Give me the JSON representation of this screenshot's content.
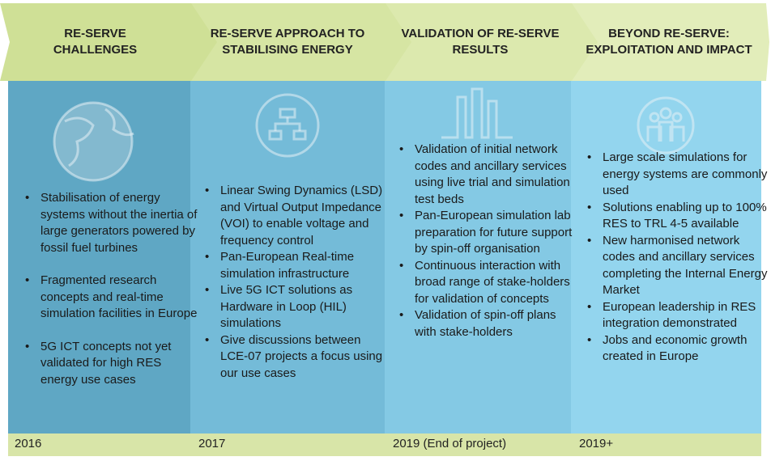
{
  "columns": [
    {
      "heading": "RE-SERVE CHALLENGES",
      "year": "2016",
      "bullets": [
        "Stabilisation of energy systems without the inertia of large generators powered by fossil fuel turbines",
        "Fragmented research concepts and real-time simulation facilities in Europe",
        "5G ICT concepts not yet validated for high RES energy use cases"
      ]
    },
    {
      "heading": "RE-SERVE APPROACH TO STABILISING ENERGY",
      "year": "2017",
      "bullets": [
        "Linear Swing Dynamics (LSD) and Virtual Output Impedance (VOI) to enable voltage and frequency control",
        "Pan-European Real-time simulation infrastructure",
        "Live 5G ICT solutions as Hardware in Loop (HIL) simulations",
        "Give discussions between LCE-07 projects a focus using our use cases"
      ]
    },
    {
      "heading": "VALIDATION OF RE-SERVE RESULTS",
      "year": "2019 (End of project)",
      "bullets": [
        "Validation of initial network codes and ancillary services using live trial and simulation test beds",
        "Pan-European simulation lab preparation for future support by spin-off organisation",
        "Continuous interaction with broad range of stake-holders for validation of concepts",
        "Validation of spin-off plans with stake-holders"
      ]
    },
    {
      "heading": "BEYOND RE-SERVE: EXPLOITATION AND IMPACT",
      "year": "2019+",
      "bullets": [
        "Large scale simulations for energy systems are commonly used",
        "Solutions enabling up to 100% RES to TRL 4-5 available",
        "New harmonised network codes and ancillary services completing the Internal Energy Market",
        "European leadership in RES integration demonstrated",
        "Jobs and economic growth created in Europe"
      ]
    }
  ]
}
